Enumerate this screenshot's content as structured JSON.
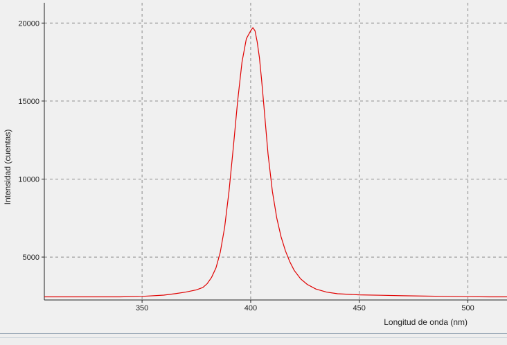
{
  "chart_data": {
    "type": "line",
    "xlabel": "Longitud de onda (nm)",
    "ylabel": "Intensidad (cuentas)",
    "xlim": [
      305,
      518
    ],
    "ylim": [
      2250,
      21300
    ],
    "x_ticks": [
      350,
      400,
      450,
      500
    ],
    "y_ticks": [
      5000,
      10000,
      15000,
      20000
    ],
    "x_tick_labels": [
      "350",
      "400",
      "450",
      "500"
    ],
    "y_tick_labels": [
      "5000",
      "10000",
      "15000",
      "20000"
    ],
    "grid": true,
    "legend": "none",
    "series": [
      {
        "color": "#e00000",
        "points": [
          [
            305,
            2450
          ],
          [
            320,
            2450
          ],
          [
            340,
            2450
          ],
          [
            350,
            2480
          ],
          [
            360,
            2560
          ],
          [
            365,
            2650
          ],
          [
            370,
            2750
          ],
          [
            375,
            2900
          ],
          [
            378,
            3050
          ],
          [
            380,
            3300
          ],
          [
            382,
            3700
          ],
          [
            384,
            4300
          ],
          [
            386,
            5300
          ],
          [
            388,
            6900
          ],
          [
            390,
            9200
          ],
          [
            392,
            12000
          ],
          [
            394,
            15000
          ],
          [
            396,
            17500
          ],
          [
            398,
            19000
          ],
          [
            400,
            19500
          ],
          [
            401,
            19700
          ],
          [
            402,
            19500
          ],
          [
            403,
            18800
          ],
          [
            404,
            17800
          ],
          [
            405,
            16400
          ],
          [
            406,
            14800
          ],
          [
            407,
            13200
          ],
          [
            408,
            11600
          ],
          [
            410,
            9200
          ],
          [
            412,
            7500
          ],
          [
            414,
            6300
          ],
          [
            416,
            5400
          ],
          [
            418,
            4700
          ],
          [
            420,
            4150
          ],
          [
            423,
            3600
          ],
          [
            426,
            3250
          ],
          [
            430,
            2950
          ],
          [
            435,
            2750
          ],
          [
            440,
            2650
          ],
          [
            450,
            2580
          ],
          [
            460,
            2550
          ],
          [
            470,
            2520
          ],
          [
            480,
            2500
          ],
          [
            490,
            2480
          ],
          [
            500,
            2460
          ],
          [
            510,
            2450
          ],
          [
            518,
            2450
          ]
        ]
      }
    ]
  }
}
